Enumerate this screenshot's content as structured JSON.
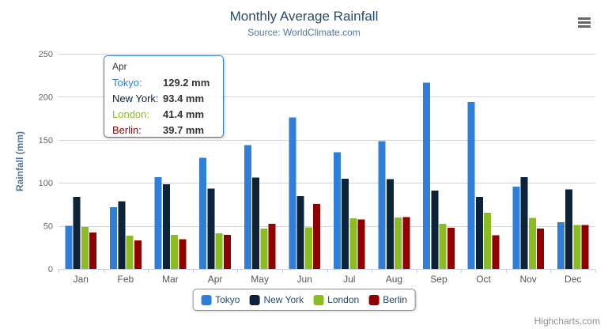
{
  "chart": {
    "title": "Monthly Average Rainfall",
    "subtitle": "Source: WorldClimate.com",
    "credits": "Highcharts.com"
  },
  "chart_data": {
    "type": "bar",
    "orientation": "vertical",
    "title": "Monthly Average Rainfall",
    "subtitle": "Source: WorldClimate.com",
    "xlabel": "",
    "ylabel": "Rainfall (mm)",
    "ylim": [
      0,
      250
    ],
    "yticks": [
      0,
      50,
      100,
      150,
      200,
      250
    ],
    "grid": true,
    "legend_position": "bottom",
    "categories": [
      "Jan",
      "Feb",
      "Mar",
      "Apr",
      "May",
      "Jun",
      "Jul",
      "Aug",
      "Sep",
      "Oct",
      "Nov",
      "Dec"
    ],
    "series": [
      {
        "name": "Tokyo",
        "color": "#2f7ed8",
        "values": [
          49.9,
          71.5,
          106.4,
          129.2,
          144.0,
          176.0,
          135.6,
          148.5,
          216.4,
          194.1,
          95.6,
          54.4
        ]
      },
      {
        "name": "New York",
        "color": "#0d233a",
        "values": [
          83.6,
          78.8,
          98.5,
          93.4,
          106.0,
          84.5,
          105.0,
          104.3,
          91.2,
          83.5,
          106.6,
          92.3
        ]
      },
      {
        "name": "London",
        "color": "#8bbc21",
        "values": [
          48.9,
          38.8,
          39.3,
          41.4,
          47.0,
          48.3,
          59.0,
          59.6,
          52.4,
          65.2,
          59.3,
          51.2
        ]
      },
      {
        "name": "Berlin",
        "color": "#910000",
        "values": [
          42.4,
          33.2,
          34.5,
          39.7,
          52.6,
          75.5,
          57.4,
          60.4,
          47.6,
          39.1,
          46.8,
          51.1
        ]
      }
    ]
  },
  "tooltip": {
    "header": "Apr",
    "border_color": "#2f7ed8",
    "rows": [
      {
        "label": "Tokyo:",
        "value": "129.2 mm",
        "color": "#2f7ed8"
      },
      {
        "label": "New York:",
        "value": "93.4 mm",
        "color": "#0d233a"
      },
      {
        "label": "London:",
        "value": "41.4 mm",
        "color": "#8bbc21"
      },
      {
        "label": "Berlin:",
        "value": "39.7 mm",
        "color": "#910000"
      }
    ]
  },
  "legend": {
    "items": [
      {
        "label": "Tokyo",
        "color": "#2f7ed8"
      },
      {
        "label": "New York",
        "color": "#0d233a"
      },
      {
        "label": "London",
        "color": "#8bbc21"
      },
      {
        "label": "Berlin",
        "color": "#910000"
      }
    ]
  },
  "icons": {
    "menu": "hamburger-menu-icon"
  },
  "style_colors": {
    "title": "#274b6d",
    "subtitle": "#4d759e",
    "axis_labels": "#555555",
    "gridline": "#d4d4d4",
    "axis_line": "#c0d0e0",
    "credits": "#909090"
  }
}
